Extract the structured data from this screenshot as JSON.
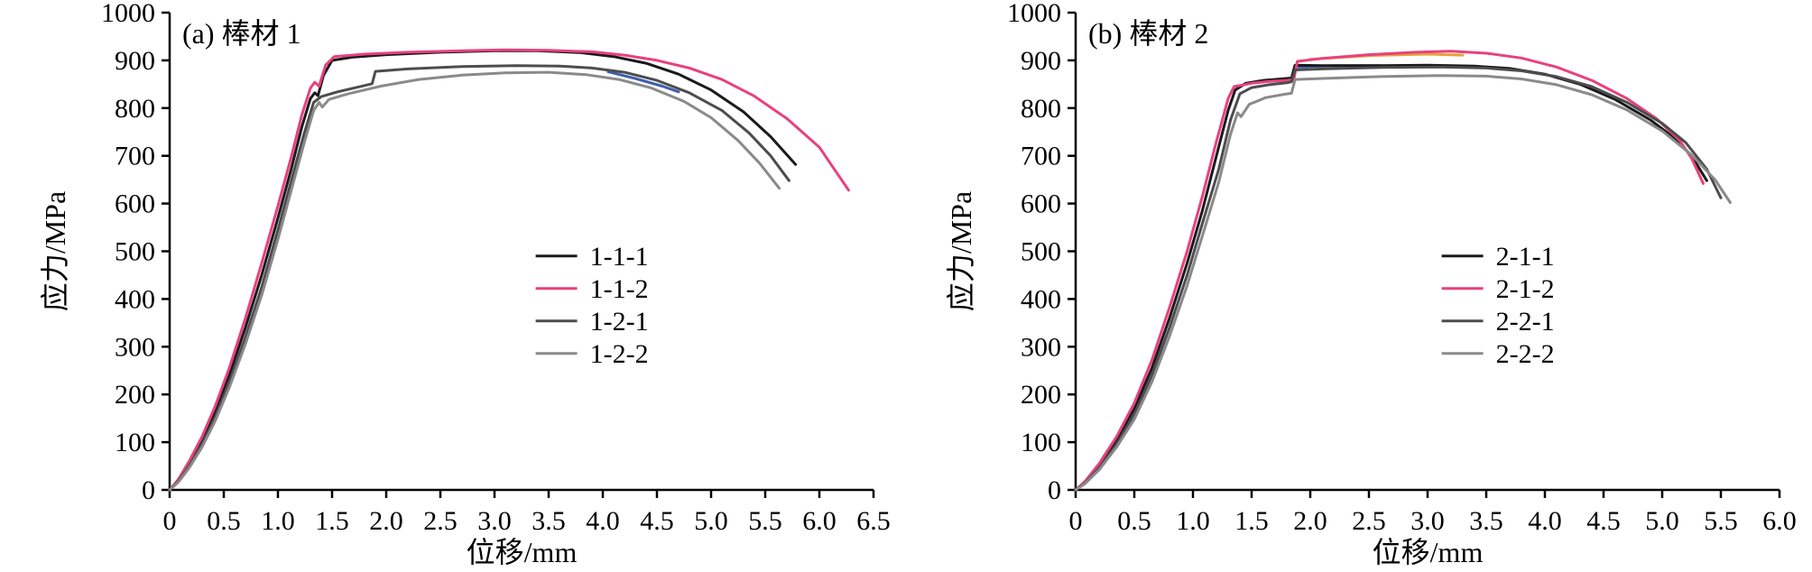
{
  "figure_background": "#ffffff",
  "chart_data": [
    {
      "type": "line",
      "panel_label": "(a) 棒材 1",
      "xlabel": "位移/mm",
      "ylabel": "应力/MPa",
      "xlim": [
        0,
        6.5
      ],
      "ylim": [
        0,
        1000
      ],
      "xticks": [
        0,
        0.5,
        1.0,
        1.5,
        2.0,
        2.5,
        3.0,
        3.5,
        4.0,
        4.5,
        5.0,
        5.5,
        6.0,
        6.5
      ],
      "xtick_labels": [
        "0",
        "0.5",
        "1.0",
        "1.5",
        "2.0",
        "2.5",
        "3.0",
        "3.5",
        "4.0",
        "4.5",
        "5.0",
        "5.5",
        "6.0",
        "6.5"
      ],
      "yticks": [
        0,
        100,
        200,
        300,
        400,
        500,
        600,
        700,
        800,
        900,
        1000
      ],
      "ytick_labels": [
        "0",
        "100",
        "200",
        "300",
        "400",
        "500",
        "600",
        "700",
        "800",
        "900",
        "1000"
      ],
      "grid": false,
      "legend_position": "inside-right-middle",
      "underlay_segments": [
        {
          "color": "#3f5fae",
          "points": [
            [
              4.05,
              876
            ],
            [
              4.3,
              862
            ],
            [
              4.55,
              846
            ],
            [
              4.7,
              834
            ]
          ]
        }
      ],
      "series": [
        {
          "name": "1-1-1",
          "color": "#1a1a1a",
          "points": [
            [
              0,
              0
            ],
            [
              0.08,
              20
            ],
            [
              0.18,
              55
            ],
            [
              0.3,
              105
            ],
            [
              0.42,
              165
            ],
            [
              0.55,
              240
            ],
            [
              0.7,
              340
            ],
            [
              0.85,
              450
            ],
            [
              1.0,
              570
            ],
            [
              1.12,
              670
            ],
            [
              1.22,
              760
            ],
            [
              1.3,
              820
            ],
            [
              1.34,
              832
            ],
            [
              1.37,
              826
            ],
            [
              1.42,
              868
            ],
            [
              1.5,
              900
            ],
            [
              1.7,
              907
            ],
            [
              2.0,
              912
            ],
            [
              2.5,
              917
            ],
            [
              3.0,
              920
            ],
            [
              3.4,
              920
            ],
            [
              3.8,
              916
            ],
            [
              4.1,
              908
            ],
            [
              4.4,
              894
            ],
            [
              4.7,
              871
            ],
            [
              5.0,
              838
            ],
            [
              5.3,
              792
            ],
            [
              5.55,
              740
            ],
            [
              5.78,
              682
            ]
          ]
        },
        {
          "name": "1-1-2",
          "color": "#e8417e",
          "points": [
            [
              0,
              0
            ],
            [
              0.08,
              22
            ],
            [
              0.18,
              60
            ],
            [
              0.3,
              112
            ],
            [
              0.42,
              175
            ],
            [
              0.55,
              255
            ],
            [
              0.7,
              360
            ],
            [
              0.85,
              475
            ],
            [
              1.0,
              595
            ],
            [
              1.12,
              695
            ],
            [
              1.22,
              785
            ],
            [
              1.3,
              842
            ],
            [
              1.34,
              854
            ],
            [
              1.38,
              846
            ],
            [
              1.44,
              890
            ],
            [
              1.52,
              908
            ],
            [
              1.8,
              913
            ],
            [
              2.2,
              917
            ],
            [
              2.7,
              920
            ],
            [
              3.1,
              922
            ],
            [
              3.5,
              921
            ],
            [
              3.9,
              918
            ],
            [
              4.2,
              911
            ],
            [
              4.5,
              900
            ],
            [
              4.8,
              884
            ],
            [
              5.1,
              860
            ],
            [
              5.4,
              825
            ],
            [
              5.7,
              778
            ],
            [
              6.0,
              718
            ],
            [
              6.27,
              628
            ]
          ]
        },
        {
          "name": "1-2-1",
          "color": "#4d4d4d",
          "points": [
            [
              0,
              0
            ],
            [
              0.08,
              18
            ],
            [
              0.18,
              50
            ],
            [
              0.3,
              96
            ],
            [
              0.42,
              152
            ],
            [
              0.55,
              225
            ],
            [
              0.7,
              320
            ],
            [
              0.85,
              425
            ],
            [
              1.0,
              545
            ],
            [
              1.12,
              645
            ],
            [
              1.24,
              745
            ],
            [
              1.33,
              812
            ],
            [
              1.4,
              824
            ],
            [
              1.55,
              834
            ],
            [
              1.72,
              843
            ],
            [
              1.87,
              851
            ],
            [
              1.9,
              877
            ],
            [
              2.2,
              882
            ],
            [
              2.7,
              887
            ],
            [
              3.2,
              889
            ],
            [
              3.6,
              888
            ],
            [
              3.9,
              884
            ],
            [
              4.2,
              875
            ],
            [
              4.5,
              858
            ],
            [
              4.8,
              832
            ],
            [
              5.1,
              795
            ],
            [
              5.35,
              748
            ],
            [
              5.55,
              700
            ],
            [
              5.72,
              648
            ]
          ]
        },
        {
          "name": "1-2-2",
          "color": "#8a8a8a",
          "points": [
            [
              0,
              0
            ],
            [
              0.08,
              16
            ],
            [
              0.18,
              46
            ],
            [
              0.3,
              90
            ],
            [
              0.42,
              144
            ],
            [
              0.55,
              214
            ],
            [
              0.7,
              306
            ],
            [
              0.85,
              408
            ],
            [
              1.0,
              525
            ],
            [
              1.12,
              625
            ],
            [
              1.24,
              725
            ],
            [
              1.33,
              795
            ],
            [
              1.38,
              812
            ],
            [
              1.41,
              802
            ],
            [
              1.47,
              818
            ],
            [
              1.65,
              830
            ],
            [
              1.95,
              846
            ],
            [
              2.3,
              860
            ],
            [
              2.7,
              869
            ],
            [
              3.1,
              874
            ],
            [
              3.5,
              875
            ],
            [
              3.85,
              870
            ],
            [
              4.15,
              860
            ],
            [
              4.45,
              842
            ],
            [
              4.75,
              814
            ],
            [
              5.0,
              780
            ],
            [
              5.25,
              732
            ],
            [
              5.45,
              684
            ],
            [
              5.63,
              632
            ]
          ]
        }
      ]
    },
    {
      "type": "line",
      "panel_label": "(b) 棒材 2",
      "xlabel": "位移/mm",
      "ylabel": "应力/MPa",
      "xlim": [
        0,
        6.0
      ],
      "ylim": [
        0,
        1000
      ],
      "xticks": [
        0,
        0.5,
        1.0,
        1.5,
        2.0,
        2.5,
        3.0,
        3.5,
        4.0,
        4.5,
        5.0,
        5.5,
        6.0
      ],
      "xtick_labels": [
        "0",
        "0.5",
        "1.0",
        "1.5",
        "2.0",
        "2.5",
        "3.0",
        "3.5",
        "4.0",
        "4.5",
        "5.0",
        "5.5",
        "6.0"
      ],
      "yticks": [
        0,
        100,
        200,
        300,
        400,
        500,
        600,
        700,
        800,
        900,
        1000
      ],
      "ytick_labels": [
        "0",
        "100",
        "200",
        "300",
        "400",
        "500",
        "600",
        "700",
        "800",
        "900",
        "1000"
      ],
      "grid": false,
      "legend_position": "inside-right-middle",
      "underlay_segments": [
        {
          "color": "#e8a23a",
          "points": [
            [
              2.0,
              902
            ],
            [
              2.5,
              910
            ],
            [
              3.0,
              913
            ],
            [
              3.3,
              911
            ]
          ]
        },
        {
          "color": "#3f5fae",
          "points": [
            [
              1.9,
              886
            ],
            [
              2.2,
              889
            ],
            [
              2.6,
              889
            ]
          ]
        }
      ],
      "series": [
        {
          "name": "2-1-1",
          "color": "#1a1a1a",
          "points": [
            [
              0,
              0
            ],
            [
              0.08,
              16
            ],
            [
              0.2,
              50
            ],
            [
              0.35,
              105
            ],
            [
              0.5,
              170
            ],
            [
              0.65,
              255
            ],
            [
              0.8,
              360
            ],
            [
              0.95,
              475
            ],
            [
              1.08,
              585
            ],
            [
              1.2,
              700
            ],
            [
              1.3,
              795
            ],
            [
              1.36,
              838
            ],
            [
              1.45,
              852
            ],
            [
              1.6,
              858
            ],
            [
              1.75,
              861
            ],
            [
              1.84,
              863
            ],
            [
              1.87,
              890
            ],
            [
              2.1,
              889
            ],
            [
              2.6,
              889
            ],
            [
              3.0,
              890
            ],
            [
              3.4,
              888
            ],
            [
              3.7,
              883
            ],
            [
              4.0,
              871
            ],
            [
              4.3,
              850
            ],
            [
              4.6,
              818
            ],
            [
              4.9,
              775
            ],
            [
              5.1,
              738
            ],
            [
              5.25,
              700
            ],
            [
              5.38,
              648
            ]
          ]
        },
        {
          "name": "2-1-2",
          "color": "#e8417e",
          "points": [
            [
              0,
              0
            ],
            [
              0.08,
              18
            ],
            [
              0.2,
              55
            ],
            [
              0.35,
              112
            ],
            [
              0.5,
              182
            ],
            [
              0.65,
              272
            ],
            [
              0.8,
              382
            ],
            [
              0.95,
              500
            ],
            [
              1.08,
              615
            ],
            [
              1.2,
              730
            ],
            [
              1.3,
              820
            ],
            [
              1.35,
              845
            ],
            [
              1.5,
              852
            ],
            [
              1.65,
              856
            ],
            [
              1.8,
              858
            ],
            [
              1.86,
              860
            ],
            [
              1.89,
              898
            ],
            [
              2.1,
              904
            ],
            [
              2.5,
              912
            ],
            [
              2.9,
              917
            ],
            [
              3.2,
              919
            ],
            [
              3.5,
              915
            ],
            [
              3.8,
              905
            ],
            [
              4.1,
              886
            ],
            [
              4.4,
              858
            ],
            [
              4.7,
              820
            ],
            [
              4.95,
              778
            ],
            [
              5.15,
              732
            ],
            [
              5.25,
              695
            ],
            [
              5.35,
              642
            ]
          ]
        },
        {
          "name": "2-2-1",
          "color": "#4d4d4d",
          "points": [
            [
              0,
              0
            ],
            [
              0.08,
              14
            ],
            [
              0.2,
              46
            ],
            [
              0.35,
              96
            ],
            [
              0.5,
              158
            ],
            [
              0.65,
              240
            ],
            [
              0.8,
              340
            ],
            [
              0.95,
              450
            ],
            [
              1.08,
              558
            ],
            [
              1.22,
              672
            ],
            [
              1.32,
              775
            ],
            [
              1.4,
              830
            ],
            [
              1.5,
              843
            ],
            [
              1.65,
              849
            ],
            [
              1.8,
              853
            ],
            [
              1.84,
              855
            ],
            [
              1.87,
              880
            ],
            [
              2.1,
              882
            ],
            [
              2.6,
              885
            ],
            [
              3.1,
              886
            ],
            [
              3.5,
              884
            ],
            [
              3.8,
              878
            ],
            [
              4.1,
              866
            ],
            [
              4.4,
              845
            ],
            [
              4.7,
              812
            ],
            [
              5.0,
              768
            ],
            [
              5.2,
              728
            ],
            [
              5.38,
              672
            ],
            [
              5.5,
              612
            ]
          ]
        },
        {
          "name": "2-2-2",
          "color": "#8a8a8a",
          "points": [
            [
              0,
              0
            ],
            [
              0.08,
              13
            ],
            [
              0.2,
              42
            ],
            [
              0.35,
              90
            ],
            [
              0.5,
              148
            ],
            [
              0.65,
              226
            ],
            [
              0.8,
              322
            ],
            [
              0.95,
              428
            ],
            [
              1.08,
              532
            ],
            [
              1.22,
              645
            ],
            [
              1.32,
              745
            ],
            [
              1.38,
              790
            ],
            [
              1.41,
              782
            ],
            [
              1.48,
              808
            ],
            [
              1.62,
              822
            ],
            [
              1.78,
              829
            ],
            [
              1.84,
              831
            ],
            [
              1.87,
              860
            ],
            [
              2.1,
              862
            ],
            [
              2.6,
              866
            ],
            [
              3.1,
              868
            ],
            [
              3.5,
              867
            ],
            [
              3.8,
              861
            ],
            [
              4.1,
              849
            ],
            [
              4.4,
              828
            ],
            [
              4.7,
              796
            ],
            [
              5.0,
              752
            ],
            [
              5.25,
              702
            ],
            [
              5.45,
              650
            ],
            [
              5.58,
              602
            ]
          ]
        }
      ]
    }
  ]
}
